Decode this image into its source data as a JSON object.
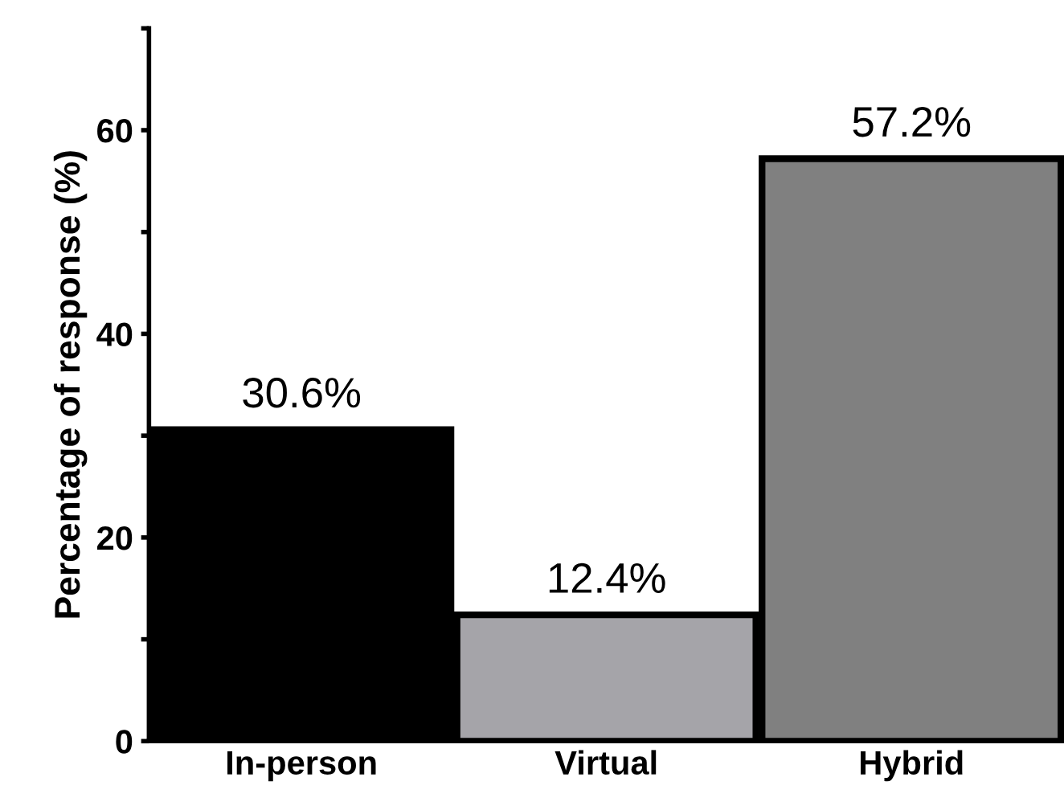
{
  "chart_data": {
    "type": "bar",
    "ylabel": "Percentage of response (%)",
    "categories": [
      "In-person",
      "Virtual",
      "Hybrid"
    ],
    "values": [
      30.6,
      12.4,
      57.2
    ],
    "colors": [
      "#000000",
      "#a5a4a9",
      "#808080"
    ],
    "value_labels": [
      "30.6%",
      "12.4%",
      "57.2%"
    ],
    "ylim": [
      0,
      70
    ],
    "yticks": [
      0,
      {
        "value": 10,
        "label": null
      },
      20,
      {
        "value": 30,
        "label": null
      },
      40,
      {
        "value": 50,
        "label": null
      },
      60,
      {
        "value": 70,
        "label": null
      }
    ],
    "grid": false
  }
}
